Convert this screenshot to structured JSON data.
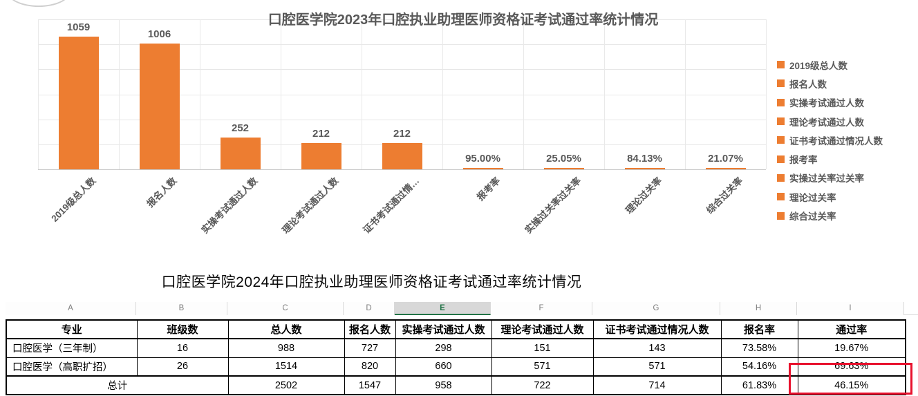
{
  "chart_data": {
    "type": "bar",
    "title": "口腔医学院2023年口腔执业助理医师资格证考试通过率统计情况",
    "categories": [
      "2019级总人数",
      "报名人数",
      "实操考试通过人数",
      "理论考试通过人数",
      "证书考试通过情…",
      "报考率",
      "实操过关率过关率",
      "理论过关率",
      "综合过关率"
    ],
    "values": [
      1059,
      1006,
      252,
      212,
      212,
      0.95,
      0.2505,
      0.8413,
      0.2107
    ],
    "data_labels": [
      "1059",
      "1006",
      "252",
      "212",
      "212",
      "95.00%",
      "25.05%",
      "84.13%",
      "21.07%"
    ],
    "legend_entries": [
      "2019级总人数",
      "报名人数",
      "实操考试通过人数",
      "理论考试通过人数",
      "证书考试通过情况人数",
      "报考率",
      "实操过关率过关率",
      "理论过关率",
      "综合过关率"
    ],
    "legend_position": "right",
    "bar_color": "#ED7D31",
    "label_color": "#595959",
    "ylim": [
      0,
      1200
    ],
    "gridlines": true,
    "value_axis_labels": "hidden"
  },
  "section2": {
    "title": "口腔医学院2024年口腔执业助理医师资格证考试通过率统计情况"
  },
  "sheet": {
    "column_letters": [
      "A",
      "B",
      "C",
      "D",
      "E",
      "F",
      "G",
      "H",
      "I"
    ],
    "selected_column": "E",
    "selection_color": "#217346"
  },
  "table": {
    "headers": [
      "专业",
      "班级数",
      "总人数",
      "报名人数",
      "实操考试通过人数",
      "理论考试通过人数",
      "证书考试通过情况人数",
      "报名率",
      "通过率"
    ],
    "rows": [
      [
        "口腔医学（三年制）",
        "16",
        "988",
        "727",
        "298",
        "151",
        "143",
        "73.58%",
        "19.67%"
      ],
      [
        "口腔医学（高职扩招）",
        "26",
        "1514",
        "820",
        "660",
        "571",
        "571",
        "54.16%",
        "69.63%"
      ],
      [
        "总计",
        "",
        "2502",
        "1547",
        "958",
        "722",
        "714",
        "61.83%",
        "46.15%"
      ]
    ]
  },
  "annotation": {
    "highlighted_value": "46.15%",
    "highlight_color": "#E8112D"
  }
}
